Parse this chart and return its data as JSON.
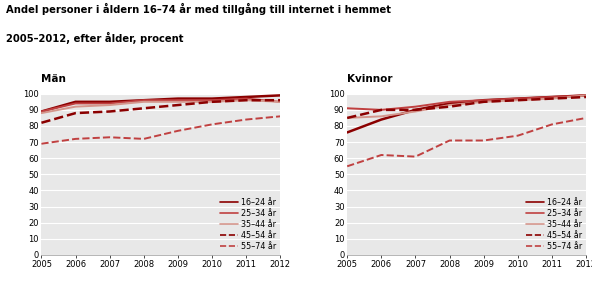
{
  "title1": "Andel personer i åldern 16–74 år med tillgång till internet i hemmet",
  "title2": "2005–2012, efter ålder, procent",
  "years": [
    2005,
    2006,
    2007,
    2008,
    2009,
    2010,
    2011,
    2012
  ],
  "man": {
    "label": "Män",
    "16-24": [
      89,
      95,
      95,
      96,
      97,
      97,
      98,
      99
    ],
    "25-34": [
      89,
      94,
      94,
      96,
      96,
      96,
      97,
      95
    ],
    "35-44": [
      88,
      92,
      93,
      95,
      95,
      95,
      96,
      95
    ],
    "45-54": [
      82,
      88,
      89,
      91,
      93,
      95,
      96,
      96
    ],
    "55-74": [
      69,
      72,
      73,
      72,
      77,
      81,
      84,
      86
    ]
  },
  "kvinna": {
    "label": "Kvinnor",
    "16-24": [
      76,
      84,
      90,
      94,
      96,
      97,
      98,
      99
    ],
    "25-34": [
      91,
      90,
      92,
      95,
      96,
      97,
      98,
      99
    ],
    "35-44": [
      85,
      86,
      89,
      93,
      95,
      96,
      97,
      99
    ],
    "45-54": [
      85,
      90,
      90,
      92,
      95,
      96,
      97,
      98
    ],
    "55-74": [
      55,
      62,
      61,
      71,
      71,
      74,
      81,
      85
    ]
  },
  "styles": {
    "16-24": {
      "color": "#8B0000",
      "lw": 1.8,
      "ls": "-",
      "label": "16–24 år"
    },
    "25-34": {
      "color": "#C04040",
      "lw": 1.4,
      "ls": "-",
      "label": "25–34 år"
    },
    "35-44": {
      "color": "#D4968C",
      "lw": 1.4,
      "ls": "-",
      "label": "35–44 år"
    },
    "45-54": {
      "color": "#8B0000",
      "lw": 1.8,
      "ls": "--",
      "label": "45–54 år"
    },
    "55-74": {
      "color": "#C04040",
      "lw": 1.4,
      "ls": "--",
      "label": "55–74 år"
    }
  },
  "bg_color": "#E8E8E8",
  "grid_color": "#FFFFFF",
  "ylim": [
    0,
    100
  ],
  "yticks": [
    0,
    10,
    20,
    30,
    40,
    50,
    60,
    70,
    80,
    90,
    100
  ]
}
